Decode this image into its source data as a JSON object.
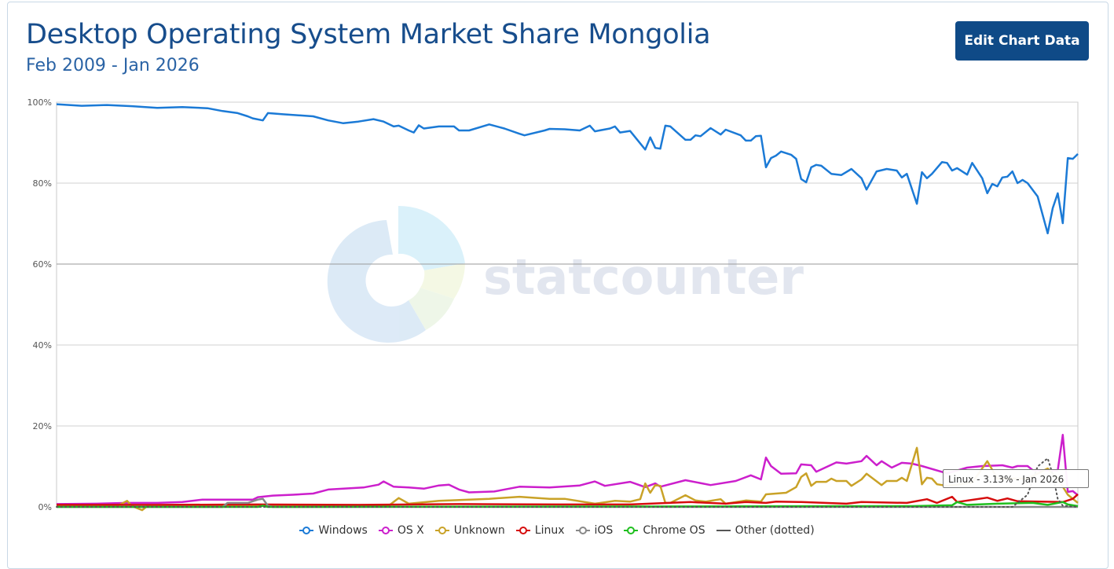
{
  "header": {
    "title": "Desktop Operating System Market Share Mongolia",
    "subtitle": "Feb 2009 - Jan 2026",
    "edit_button": "Edit Chart Data"
  },
  "watermark": {
    "logo_text": "statcounter"
  },
  "tooltip": "Linux - 3.13% - Jan 2026",
  "chart_data": {
    "type": "line",
    "title": "Desktop Operating System Market Share Mongolia",
    "subtitle": "Feb 2009 - Jan 2026",
    "x_unit": "months since Feb 2009",
    "x_range": [
      0,
      203
    ],
    "ylim": [
      0,
      100
    ],
    "y_ticks": [
      "0%",
      "20%",
      "40%",
      "60%",
      "80%",
      "100%"
    ],
    "grid": true,
    "legend_position": "bottom",
    "series": [
      {
        "name": "Windows",
        "color": "#1b7ad6",
        "points": [
          [
            0,
            99.5
          ],
          [
            5,
            99.1
          ],
          [
            10,
            99.3
          ],
          [
            15,
            99
          ],
          [
            20,
            98.6
          ],
          [
            25,
            98.8
          ],
          [
            30,
            98.5
          ],
          [
            33,
            97.8
          ],
          [
            36,
            97.3
          ],
          [
            38,
            96.5
          ],
          [
            39,
            96
          ],
          [
            41,
            95.5
          ],
          [
            42,
            97.3
          ],
          [
            45,
            97
          ],
          [
            51,
            96.5
          ],
          [
            54,
            95.5
          ],
          [
            57,
            94.8
          ],
          [
            60,
            95.2
          ],
          [
            63,
            95.8
          ],
          [
            65,
            95.2
          ],
          [
            67,
            94
          ],
          [
            68,
            94.2
          ],
          [
            70,
            93
          ],
          [
            71,
            92.5
          ],
          [
            72,
            94.3
          ],
          [
            73,
            93.5
          ],
          [
            76,
            94
          ],
          [
            79,
            94
          ],
          [
            80,
            93
          ],
          [
            82,
            93
          ],
          [
            86,
            94.5
          ],
          [
            89,
            93.5
          ],
          [
            92,
            92.2
          ],
          [
            93,
            91.8
          ],
          [
            97,
            93
          ],
          [
            98,
            93.4
          ],
          [
            101,
            93.3
          ],
          [
            104,
            93
          ],
          [
            106,
            94.2
          ],
          [
            107,
            92.8
          ],
          [
            110,
            93.5
          ],
          [
            111,
            94
          ],
          [
            112,
            92.5
          ],
          [
            114,
            92.9
          ],
          [
            117,
            88.3
          ],
          [
            118,
            91.3
          ],
          [
            119,
            88.7
          ],
          [
            120,
            88.5
          ],
          [
            121,
            94.2
          ],
          [
            122,
            94
          ],
          [
            125,
            90.7
          ],
          [
            126,
            90.7
          ],
          [
            127,
            91.8
          ],
          [
            128,
            91.6
          ],
          [
            130,
            93.6
          ],
          [
            132,
            92
          ],
          [
            133,
            93.2
          ],
          [
            136,
            91.8
          ],
          [
            137,
            90.5
          ],
          [
            138,
            90.5
          ],
          [
            139,
            91.6
          ],
          [
            140,
            91.7
          ],
          [
            141,
            83.9
          ],
          [
            142,
            86.2
          ],
          [
            143,
            86.8
          ],
          [
            144,
            87.8
          ],
          [
            146,
            87
          ],
          [
            147,
            86
          ],
          [
            148,
            81
          ],
          [
            149,
            80.2
          ],
          [
            150,
            83.9
          ],
          [
            151,
            84.5
          ],
          [
            152,
            84.3
          ],
          [
            154,
            82.3
          ],
          [
            156,
            82
          ],
          [
            158,
            83.5
          ],
          [
            160,
            81.2
          ],
          [
            161,
            78.4
          ],
          [
            163,
            82.9
          ],
          [
            165,
            83.5
          ],
          [
            167,
            83.1
          ],
          [
            168,
            81.4
          ],
          [
            169,
            82.3
          ],
          [
            171,
            74.9
          ],
          [
            172,
            82.7
          ],
          [
            173,
            81.2
          ],
          [
            174,
            82.3
          ],
          [
            176,
            85.2
          ],
          [
            177,
            85
          ],
          [
            178,
            83.1
          ],
          [
            179,
            83.7
          ],
          [
            181,
            82.1
          ],
          [
            182,
            85
          ],
          [
            184,
            81.2
          ],
          [
            185,
            77.5
          ],
          [
            186,
            79.8
          ],
          [
            187,
            79.2
          ],
          [
            188,
            81.4
          ],
          [
            189,
            81.6
          ],
          [
            190,
            82.9
          ],
          [
            191,
            80
          ],
          [
            192,
            80.8
          ],
          [
            193,
            80
          ],
          [
            195,
            76.7
          ],
          [
            197,
            67.6
          ],
          [
            198,
            73.8
          ],
          [
            199,
            77.5
          ],
          [
            200,
            70.1
          ],
          [
            201,
            86.2
          ],
          [
            202,
            86
          ],
          [
            203,
            87.2
          ]
        ]
      },
      {
        "name": "OS X",
        "color": "#cc1fcc",
        "points": [
          [
            0,
            0.7
          ],
          [
            8,
            0.8
          ],
          [
            14,
            1
          ],
          [
            20,
            1
          ],
          [
            25,
            1.2
          ],
          [
            29,
            1.8
          ],
          [
            35,
            1.8
          ],
          [
            39,
            1.8
          ],
          [
            40,
            2.4
          ],
          [
            43,
            2.8
          ],
          [
            47,
            3
          ],
          [
            51,
            3.3
          ],
          [
            54,
            4.3
          ],
          [
            57,
            4.5
          ],
          [
            61,
            4.8
          ],
          [
            64,
            5.5
          ],
          [
            65,
            6.3
          ],
          [
            67,
            5
          ],
          [
            70,
            4.8
          ],
          [
            73,
            4.5
          ],
          [
            76,
            5.3
          ],
          [
            78,
            5.5
          ],
          [
            80,
            4.3
          ],
          [
            82,
            3.6
          ],
          [
            87,
            3.8
          ],
          [
            92,
            5
          ],
          [
            98,
            4.8
          ],
          [
            104,
            5.3
          ],
          [
            107,
            6.3
          ],
          [
            109,
            5.2
          ],
          [
            114,
            6.2
          ],
          [
            117,
            4.9
          ],
          [
            119,
            5.8
          ],
          [
            120,
            5
          ],
          [
            125,
            6.6
          ],
          [
            130,
            5.4
          ],
          [
            135,
            6.4
          ],
          [
            138,
            7.8
          ],
          [
            140,
            6.8
          ],
          [
            141,
            12.2
          ],
          [
            142,
            10.1
          ],
          [
            144,
            8.2
          ],
          [
            147,
            8.3
          ],
          [
            148,
            10.5
          ],
          [
            150,
            10.3
          ],
          [
            151,
            8.7
          ],
          [
            155,
            11
          ],
          [
            157,
            10.7
          ],
          [
            160,
            11.3
          ],
          [
            161,
            12.6
          ],
          [
            163,
            10.3
          ],
          [
            164,
            11.3
          ],
          [
            166,
            9.7
          ],
          [
            168,
            10.9
          ],
          [
            170,
            10.7
          ],
          [
            172,
            10.1
          ],
          [
            177,
            8.3
          ],
          [
            181,
            9.7
          ],
          [
            184,
            10.1
          ],
          [
            188,
            10.3
          ],
          [
            190,
            9.7
          ],
          [
            191,
            10.1
          ],
          [
            193,
            10.1
          ],
          [
            194,
            9.1
          ],
          [
            199,
            9
          ],
          [
            200,
            17.8
          ],
          [
            201,
            3.7
          ],
          [
            202,
            3.9
          ],
          [
            203,
            2.9
          ]
        ]
      },
      {
        "name": "Unknown",
        "color": "#c9a227",
        "points": [
          [
            0,
            0.2
          ],
          [
            12,
            0.2
          ],
          [
            14,
            1.5
          ],
          [
            15,
            0.2
          ],
          [
            17,
            -0.8
          ],
          [
            18,
            0.2
          ],
          [
            66,
            0.3
          ],
          [
            68,
            2.2
          ],
          [
            70,
            0.8
          ],
          [
            76,
            1.5
          ],
          [
            82,
            1.8
          ],
          [
            86,
            2
          ],
          [
            92,
            2.5
          ],
          [
            98,
            2
          ],
          [
            101,
            2
          ],
          [
            107,
            0.8
          ],
          [
            111,
            1.5
          ],
          [
            114,
            1.3
          ],
          [
            116,
            1.9
          ],
          [
            117,
            5.8
          ],
          [
            118,
            3.5
          ],
          [
            119,
            5.4
          ],
          [
            120,
            5.2
          ],
          [
            121,
            1
          ],
          [
            122,
            1
          ],
          [
            125,
            2.9
          ],
          [
            127,
            1.6
          ],
          [
            129,
            1.3
          ],
          [
            132,
            1.9
          ],
          [
            133,
            0.8
          ],
          [
            137,
            1.6
          ],
          [
            140,
            1.3
          ],
          [
            141,
            3.1
          ],
          [
            145,
            3.5
          ],
          [
            147,
            4.9
          ],
          [
            148,
            7.4
          ],
          [
            149,
            8.3
          ],
          [
            150,
            5.2
          ],
          [
            151,
            6.2
          ],
          [
            153,
            6.2
          ],
          [
            154,
            7
          ],
          [
            155,
            6.4
          ],
          [
            157,
            6.4
          ],
          [
            158,
            5.2
          ],
          [
            160,
            6.8
          ],
          [
            161,
            8.2
          ],
          [
            164,
            5.4
          ],
          [
            165,
            6.4
          ],
          [
            167,
            6.4
          ],
          [
            168,
            7.2
          ],
          [
            169,
            6.4
          ],
          [
            171,
            14.6
          ],
          [
            172,
            5.6
          ],
          [
            173,
            7.2
          ],
          [
            174,
            7
          ],
          [
            175,
            5.6
          ],
          [
            177,
            5.2
          ],
          [
            182,
            6
          ],
          [
            185,
            11.3
          ],
          [
            187,
            7
          ],
          [
            193,
            7
          ],
          [
            197,
            9.5
          ],
          [
            199,
            7
          ],
          [
            201,
            3
          ],
          [
            203,
            1
          ]
        ]
      },
      {
        "name": "Linux",
        "color": "#d60d0d",
        "points": [
          [
            0,
            0.5
          ],
          [
            20,
            0.5
          ],
          [
            40,
            0.6
          ],
          [
            60,
            0.5
          ],
          [
            80,
            0.7
          ],
          [
            100,
            0.6
          ],
          [
            114,
            0.6
          ],
          [
            126,
            1.2
          ],
          [
            133,
            0.8
          ],
          [
            137,
            1.2
          ],
          [
            141,
            1
          ],
          [
            143,
            1.3
          ],
          [
            148,
            1.2
          ],
          [
            157,
            0.8
          ],
          [
            160,
            1.2
          ],
          [
            169,
            1
          ],
          [
            173,
            1.9
          ],
          [
            175,
            1
          ],
          [
            178,
            2.5
          ],
          [
            179,
            1.2
          ],
          [
            185,
            2.3
          ],
          [
            187,
            1.5
          ],
          [
            189,
            2.1
          ],
          [
            191,
            1.4
          ],
          [
            200,
            1.2
          ],
          [
            202,
            2
          ],
          [
            203,
            3.13
          ]
        ]
      },
      {
        "name": "iOS",
        "color": "#888888",
        "points": [
          [
            0,
            0
          ],
          [
            33,
            0
          ],
          [
            34,
            1
          ],
          [
            38,
            1
          ],
          [
            40,
            1.8
          ],
          [
            41,
            2
          ],
          [
            42,
            0.3
          ],
          [
            43,
            0
          ],
          [
            203,
            0
          ]
        ]
      },
      {
        "name": "Chrome OS",
        "color": "#1fbf1f",
        "points": [
          [
            0,
            0
          ],
          [
            40,
            0
          ],
          [
            41,
            0.3
          ],
          [
            42,
            0
          ],
          [
            170,
            0.2
          ],
          [
            178,
            0.4
          ],
          [
            179,
            1.2
          ],
          [
            181,
            0.5
          ],
          [
            187,
            0.8
          ],
          [
            194,
            1
          ],
          [
            197,
            0.5
          ],
          [
            200,
            1.2
          ],
          [
            201,
            0.6
          ],
          [
            203,
            0.2
          ]
        ]
      },
      {
        "name": "Other (dotted)",
        "color": "#555555",
        "dotted": true,
        "points": [
          [
            0,
            0
          ],
          [
            190,
            0
          ],
          [
            193,
            3
          ],
          [
            195,
            10
          ],
          [
            197,
            12
          ],
          [
            198,
            8
          ],
          [
            199,
            2
          ],
          [
            200,
            0.3
          ],
          [
            203,
            0
          ]
        ]
      }
    ]
  }
}
